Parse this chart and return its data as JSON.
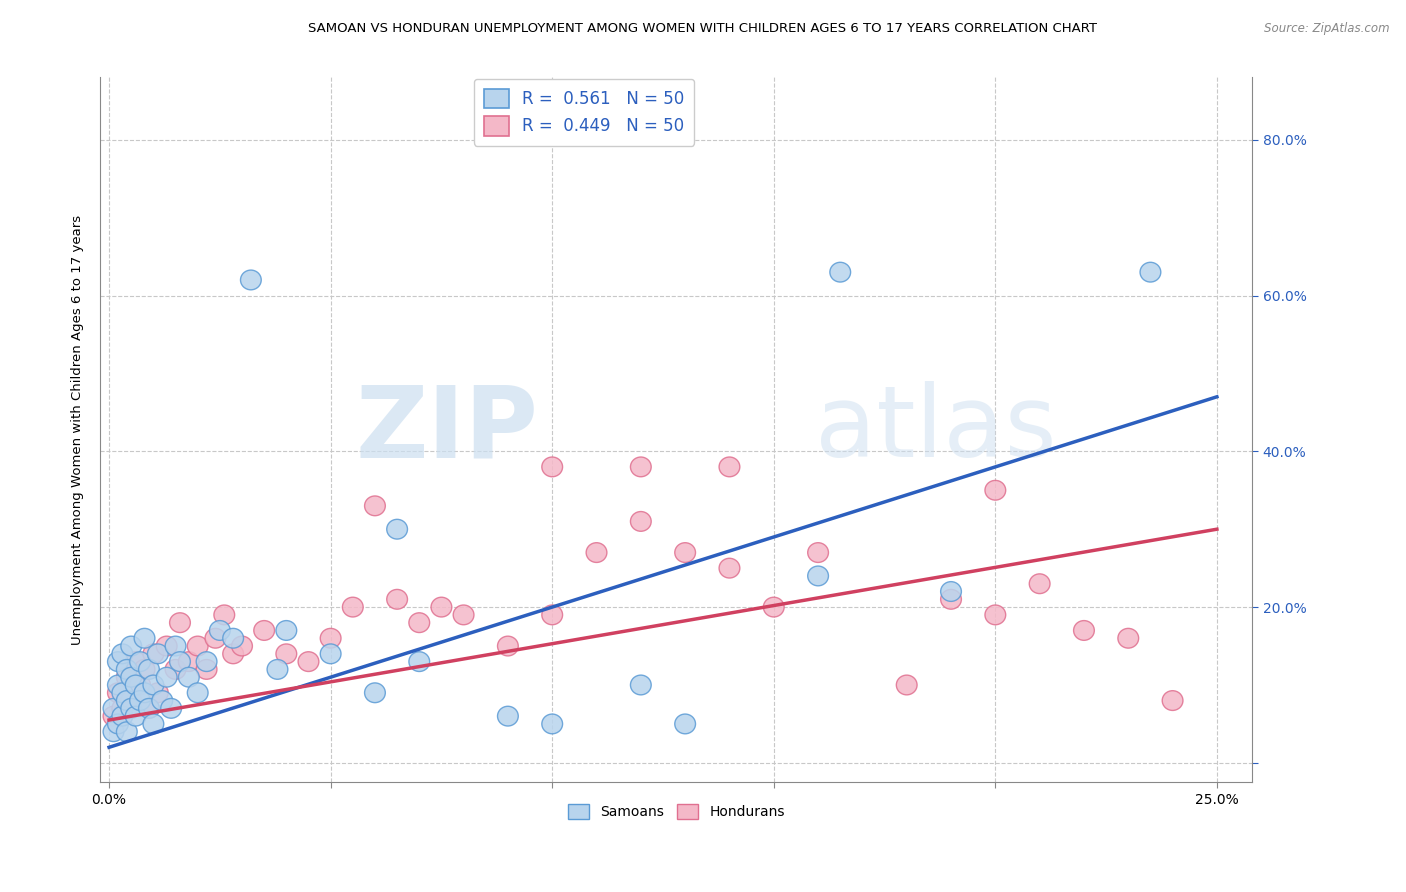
{
  "title": "SAMOAN VS HONDURAN UNEMPLOYMENT AMONG WOMEN WITH CHILDREN AGES 6 TO 17 YEARS CORRELATION CHART",
  "source": "Source: ZipAtlas.com",
  "ylabel": "Unemployment Among Women with Children Ages 6 to 17 years",
  "xlim": [
    -0.002,
    0.258
  ],
  "ylim": [
    -0.025,
    0.88
  ],
  "xticks": [
    0.0,
    0.05,
    0.1,
    0.15,
    0.2,
    0.25
  ],
  "yticks_right": [
    0.0,
    0.2,
    0.4,
    0.6,
    0.8
  ],
  "ytick_labels_right": [
    "",
    "20.0%",
    "40.0%",
    "60.0%",
    "80.0%"
  ],
  "samoan_color": "#b8d4ed",
  "samoan_edge": "#5b9bd5",
  "honduran_color": "#f4b8c8",
  "honduran_edge": "#e07090",
  "line_blue": "#2c5fbe",
  "line_pink": "#d04060",
  "background": "#ffffff",
  "grid_color": "#c8c8c8",
  "legend_label_blue": "R =  0.561   N = 50",
  "legend_label_pink": "R =  0.449   N = 50",
  "legend_text_color": "#2c5fbe",
  "samoan_x": [
    0.001,
    0.001,
    0.002,
    0.002,
    0.002,
    0.003,
    0.003,
    0.003,
    0.004,
    0.004,
    0.004,
    0.005,
    0.005,
    0.005,
    0.006,
    0.006,
    0.007,
    0.007,
    0.008,
    0.008,
    0.009,
    0.009,
    0.01,
    0.01,
    0.011,
    0.012,
    0.013,
    0.014,
    0.015,
    0.016,
    0.018,
    0.02,
    0.022,
    0.025,
    0.028,
    0.032,
    0.038,
    0.04,
    0.05,
    0.06,
    0.065,
    0.07,
    0.09,
    0.1,
    0.12,
    0.13,
    0.16,
    0.165,
    0.19,
    0.235
  ],
  "samoan_y": [
    0.04,
    0.07,
    0.05,
    0.1,
    0.13,
    0.06,
    0.09,
    0.14,
    0.04,
    0.08,
    0.12,
    0.07,
    0.11,
    0.15,
    0.06,
    0.1,
    0.08,
    0.13,
    0.09,
    0.16,
    0.07,
    0.12,
    0.05,
    0.1,
    0.14,
    0.08,
    0.11,
    0.07,
    0.15,
    0.13,
    0.11,
    0.09,
    0.13,
    0.17,
    0.16,
    0.62,
    0.12,
    0.17,
    0.14,
    0.09,
    0.3,
    0.13,
    0.06,
    0.05,
    0.1,
    0.05,
    0.24,
    0.63,
    0.22,
    0.63
  ],
  "honduran_x": [
    0.001,
    0.002,
    0.003,
    0.004,
    0.005,
    0.006,
    0.007,
    0.008,
    0.009,
    0.01,
    0.011,
    0.013,
    0.015,
    0.016,
    0.018,
    0.02,
    0.022,
    0.024,
    0.026,
    0.028,
    0.03,
    0.035,
    0.04,
    0.045,
    0.05,
    0.055,
    0.06,
    0.065,
    0.07,
    0.075,
    0.08,
    0.09,
    0.1,
    0.11,
    0.12,
    0.13,
    0.14,
    0.15,
    0.16,
    0.18,
    0.19,
    0.2,
    0.21,
    0.22,
    0.23,
    0.24,
    0.1,
    0.12,
    0.14,
    0.2
  ],
  "honduran_y": [
    0.06,
    0.09,
    0.07,
    0.11,
    0.08,
    0.13,
    0.1,
    0.12,
    0.07,
    0.14,
    0.09,
    0.15,
    0.12,
    0.18,
    0.13,
    0.15,
    0.12,
    0.16,
    0.19,
    0.14,
    0.15,
    0.17,
    0.14,
    0.13,
    0.16,
    0.2,
    0.33,
    0.21,
    0.18,
    0.2,
    0.19,
    0.15,
    0.19,
    0.27,
    0.31,
    0.27,
    0.25,
    0.2,
    0.27,
    0.1,
    0.21,
    0.19,
    0.23,
    0.17,
    0.16,
    0.08,
    0.38,
    0.38,
    0.38,
    0.35
  ],
  "blue_line_x0": 0.0,
  "blue_line_y0": 0.02,
  "blue_line_x1": 0.25,
  "blue_line_y1": 0.47,
  "pink_line_x0": 0.0,
  "pink_line_y0": 0.055,
  "pink_line_x1": 0.25,
  "pink_line_y1": 0.3
}
